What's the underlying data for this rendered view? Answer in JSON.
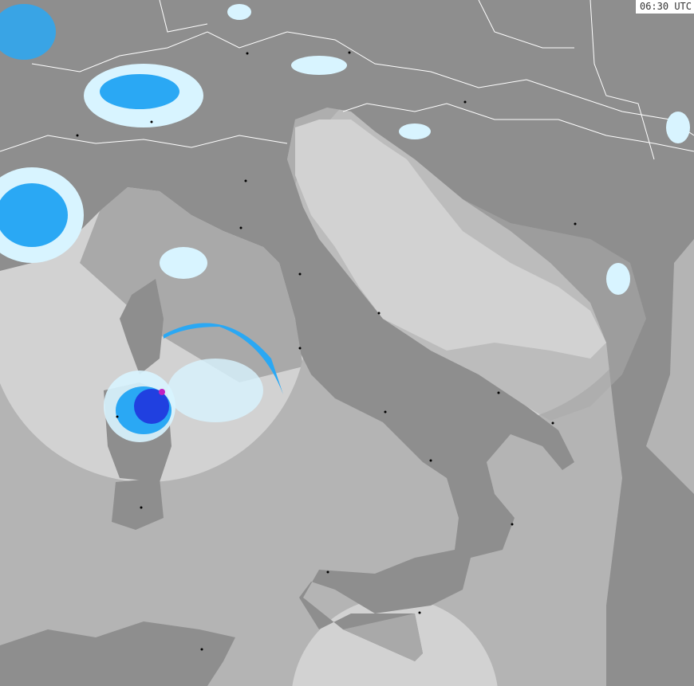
{
  "timestamp": "06:30 UTC",
  "colors": {
    "sea": "#b4b4b4",
    "land": "#8e8e8e",
    "coverage_sea": "#d2d2d2",
    "coverage_land": "#a9a9a9",
    "border": "#ffffff",
    "precip_light": "#d8f4ff",
    "precip_moderate": "#2aa8f4",
    "precip_heavy": "#2040e0",
    "precip_extreme": "#c020c0"
  },
  "layers": [
    "radar-coverage",
    "precipitation",
    "country-borders",
    "cities"
  ]
}
